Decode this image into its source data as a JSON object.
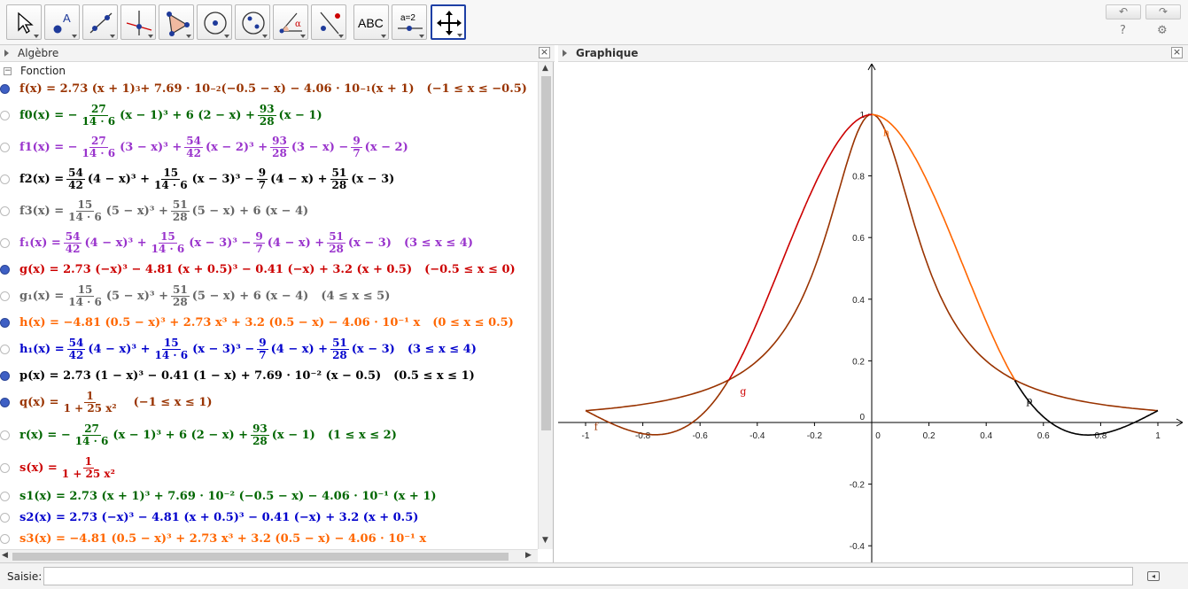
{
  "toolbar": {
    "tools": [
      {
        "name": "move-tool",
        "icon": "cursor-icon"
      },
      {
        "name": "point-tool",
        "icon": "point-icon"
      },
      {
        "name": "line-tool",
        "icon": "line-icon"
      },
      {
        "name": "perpendicular-tool",
        "icon": "perpendicular-icon"
      },
      {
        "name": "polygon-tool",
        "icon": "polygon-icon"
      },
      {
        "name": "circle-tool",
        "icon": "circle-icon"
      },
      {
        "name": "ellipse-tool",
        "icon": "ellipse-icon"
      },
      {
        "name": "angle-tool",
        "icon": "angle-icon"
      },
      {
        "name": "reflect-tool",
        "icon": "reflect-icon"
      },
      {
        "name": "text-tool",
        "icon": "text-icon",
        "label": "ABC"
      },
      {
        "name": "slider-tool",
        "icon": "slider-icon",
        "label": "a=2"
      },
      {
        "name": "move-graphics-tool",
        "icon": "move-graphics-icon"
      }
    ],
    "undo": "↶",
    "redo": "↷",
    "help": "?",
    "settings": "⚙"
  },
  "algebra": {
    "title": "Algèbre",
    "close": "×",
    "category": "Fonction",
    "rows": [
      {
        "color": "#993300",
        "visible": true,
        "parts": [
          "f(x) = 2.73 (x + 1)",
          "3",
          " + 7.69 · 10",
          "−2",
          " (−0.5 − x) − 4.06 · 10",
          "−1",
          " (x + 1)",
          "(−1 ≤ x ≤ −0.5)"
        ]
      },
      {
        "color": "#006600",
        "visible": false,
        "lead": "f0(x) = −",
        "f1n": "27",
        "f1d": "14 · 6",
        "mid": "(x − 1)³ + 6 (2 − x) +",
        "f2n": "93",
        "f2d": "28",
        "tail": "(x − 1)"
      },
      {
        "color": "#9933cc",
        "visible": false,
        "lead": "f1(x) = −",
        "f1n": "27",
        "f1d": "14 · 6",
        "mid": "(3 − x)³ +",
        "f2n": "54",
        "f2d": "42",
        "mid2": "(x − 2)³ +",
        "f3n": "93",
        "f3d": "28",
        "mid3": "(3 − x) −",
        "f4n": "9",
        "f4d": "7",
        "tail": "(x − 2)"
      },
      {
        "color": "#000000",
        "visible": false,
        "lead": "f2(x) =",
        "f1n": "54",
        "f1d": "42",
        "mid": "(4 − x)³ +",
        "f2n": "15",
        "f2d": "14 · 6",
        "mid2": "(x − 3)³ −",
        "f3n": "9",
        "f3d": "7",
        "mid3": "(4 − x) +",
        "f4n": "51",
        "f4d": "28",
        "tail": "(x − 3)"
      },
      {
        "color": "#666666",
        "visible": false,
        "lead": "f3(x) =",
        "f1n": "15",
        "f1d": "14 · 6",
        "mid": "(5 − x)³ +",
        "f2n": "51",
        "f2d": "28",
        "tail": "(5 − x) + 6 (x − 4)"
      },
      {
        "color": "#9933cc",
        "visible": false,
        "lead": "f₁(x) =",
        "f1n": "54",
        "f1d": "42",
        "mid": "(4 − x)³ +",
        "f2n": "15",
        "f2d": "14 · 6",
        "mid2": "(x − 3)³ −",
        "f3n": "9",
        "f3d": "7",
        "mid3": "(4 − x) +",
        "f4n": "51",
        "f4d": "28",
        "tail": "(x − 3)",
        "cond": "(3 ≤ x ≤ 4)"
      },
      {
        "color": "#cc0000",
        "visible": true,
        "text": "g(x) = 2.73 (−x)³ − 4.81 (x + 0.5)³ − 0.41 (−x) + 3.2 (x + 0.5)",
        "cond": "(−0.5 ≤ x ≤ 0)"
      },
      {
        "color": "#666666",
        "visible": false,
        "lead": "g₁(x) =",
        "f1n": "15",
        "f1d": "14 · 6",
        "mid": "(5 − x)³ +",
        "f2n": "51",
        "f2d": "28",
        "tail": "(5 − x) + 6 (x − 4)",
        "cond": "(4 ≤ x ≤ 5)"
      },
      {
        "color": "#ff6600",
        "visible": true,
        "text": "h(x) = −4.81 (0.5 − x)³ + 2.73 x³ + 3.2 (0.5 − x) − 4.06 · 10⁻¹ x",
        "cond": "(0 ≤ x ≤ 0.5)"
      },
      {
        "color": "#0000cc",
        "visible": false,
        "lead": "h₁(x) =",
        "f1n": "54",
        "f1d": "42",
        "mid": "(4 − x)³ +",
        "f2n": "15",
        "f2d": "14 · 6",
        "mid2": "(x − 3)³ −",
        "f3n": "9",
        "f3d": "7",
        "mid3": "(4 − x) +",
        "f4n": "51",
        "f4d": "28",
        "tail": "(x − 3)",
        "cond": "(3 ≤ x ≤ 4)"
      },
      {
        "color": "#000000",
        "visible": true,
        "text": "p(x) = 2.73 (1 − x)³ − 0.41 (1 − x) + 7.69 · 10⁻² (x − 0.5)",
        "cond": "(0.5 ≤ x ≤ 1)"
      },
      {
        "color": "#993300",
        "visible": true,
        "lead": "q(x) =",
        "f1n": "1",
        "f1d": "1 + 25 x²",
        "cond": "(−1 ≤ x ≤ 1)"
      },
      {
        "color": "#006600",
        "visible": false,
        "lead": "r(x) = −",
        "f1n": "27",
        "f1d": "14 · 6",
        "mid": "(x − 1)³ + 6 (2 − x) +",
        "f2n": "93",
        "f2d": "28",
        "tail": "(x − 1)",
        "cond": "(1 ≤ x ≤ 2)"
      },
      {
        "color": "#cc0000",
        "visible": false,
        "lead": "s(x) =",
        "f1n": "1",
        "f1d": "1 + 25 x²"
      },
      {
        "color": "#006600",
        "visible": false,
        "text": "s1(x) = 2.73 (x + 1)³ + 7.69 · 10⁻² (−0.5 − x) − 4.06 · 10⁻¹ (x + 1)"
      },
      {
        "color": "#0000cc",
        "visible": false,
        "text": "s2(x) = 2.73 (−x)³ − 4.81 (x + 0.5)³ − 0.41 (−x) + 3.2 (x + 0.5)"
      },
      {
        "color": "#ff6600",
        "visible": false,
        "text": "s3(x) = −4.81 (0.5 − x)³ + 2.73 x³ + 3.2 (0.5 − x) − 4.06 · 10⁻¹ x"
      }
    ]
  },
  "graphics": {
    "title": "Graphique",
    "close": "×",
    "x_ticks": [
      "-1",
      "-0.8",
      "-0.6",
      "-0.4",
      "-0.2",
      "0",
      "0.2",
      "0.4",
      "0.6",
      "0.8",
      "1"
    ],
    "y_ticks": [
      "1",
      "0.8",
      "0.6",
      "0.4",
      "0.2",
      "0",
      "-0.2",
      "-0.4"
    ],
    "curve_labels": {
      "f": "f",
      "g": "g",
      "h": "h",
      "p": "p"
    },
    "colors": {
      "f": "#993300",
      "g": "#cc0000",
      "h": "#ff6600",
      "p": "#000000",
      "q": "#993300"
    }
  },
  "input": {
    "label": "Saisie:",
    "value": ""
  }
}
